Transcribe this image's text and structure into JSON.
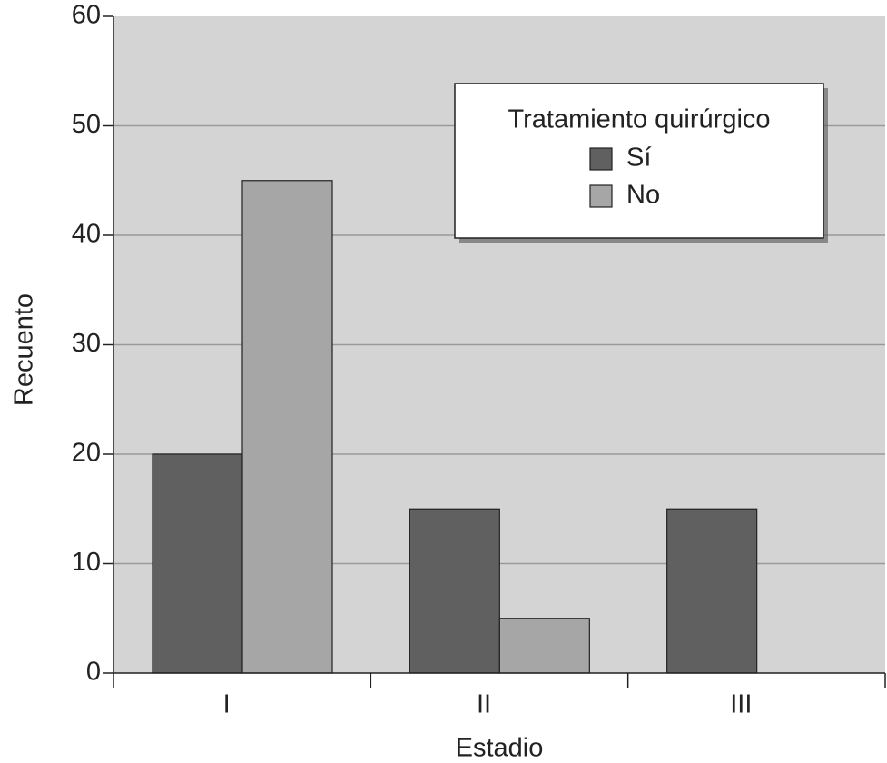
{
  "chart_data": {
    "type": "bar",
    "x_label": "Estadio",
    "y_label": "Recuento",
    "legend_title": "Tratamiento quirúrgico",
    "categories": [
      "I",
      "II",
      "III"
    ],
    "series": [
      {
        "name": "Sí",
        "color": "#606060",
        "values": [
          20,
          15,
          15
        ]
      },
      {
        "name": "No",
        "color": "#a6a6a6",
        "values": [
          45,
          5,
          0
        ]
      }
    ],
    "ylim": [
      0,
      60
    ],
    "yticks": [
      0,
      10,
      20,
      30,
      40,
      50,
      60
    ],
    "grid": true,
    "legend": "upper right"
  }
}
